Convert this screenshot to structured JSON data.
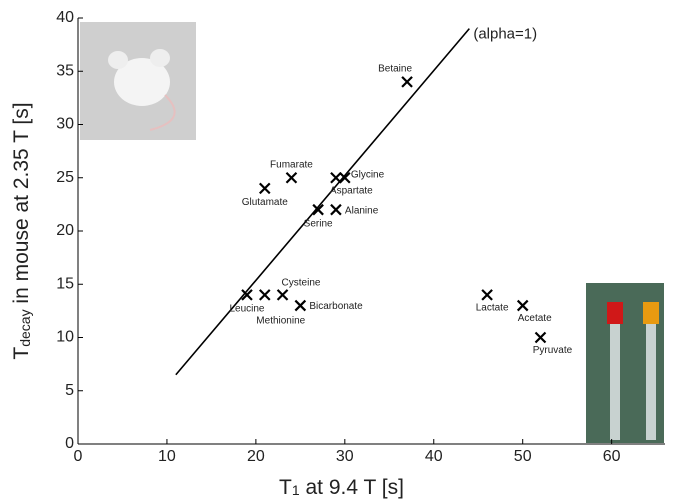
{
  "chart_data": {
    "type": "scatter",
    "x_label": {
      "base": "T",
      "sub": "1",
      "rest": " at 9.4 T  [s]"
    },
    "y_label": {
      "base": "T",
      "sub": "decay",
      "rest": " in mouse at 2.35 T  [s]"
    },
    "x": [
      37,
      24,
      30,
      29,
      21,
      27,
      29,
      23,
      19,
      21,
      25,
      46,
      50,
      52
    ],
    "y": [
      34,
      25,
      25,
      25,
      24,
      22,
      22,
      14,
      14,
      14,
      13,
      14,
      13,
      10
    ],
    "point_labels": [
      "Betaine",
      "Fumarate",
      "Glycine",
      "Aspartate",
      "Glutamate",
      "Serine",
      "Alanine",
      "Cysteine",
      "Leucine",
      "Methionine",
      "Bicarbonate",
      "Lactate",
      "Acetate",
      "Pyruvate"
    ],
    "reference_line": {
      "label": "(alpha=1)",
      "x": [
        11,
        44
      ],
      "y": [
        6.5,
        39
      ]
    },
    "xlim": [
      0,
      66
    ],
    "ylim": [
      0,
      40
    ],
    "xticks": [
      0,
      10,
      20,
      30,
      40,
      50,
      60
    ],
    "yticks": [
      0,
      5,
      10,
      15,
      20,
      25,
      30,
      35,
      40
    ],
    "color": "#000000"
  }
}
